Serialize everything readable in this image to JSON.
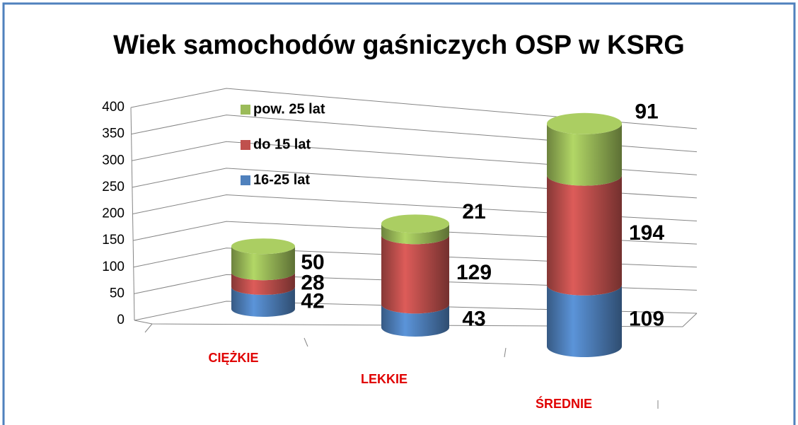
{
  "chart_data": {
    "type": "bar3d_stacked_cylinder",
    "title": "Wiek samochodów gaśniczych OSP w KSRG",
    "categories": [
      "CIĘŻKIE",
      "LEKKIE",
      "ŚREDNIE"
    ],
    "series": [
      {
        "name": "16-25 lat",
        "color": "#4f81bd",
        "values": [
          42,
          43,
          109
        ]
      },
      {
        "name": "do 15 lat",
        "color": "#c0504d",
        "values": [
          28,
          129,
          194
        ]
      },
      {
        "name": "pow. 25 lat",
        "color": "#9bbb59",
        "values": [
          50,
          21,
          91
        ]
      }
    ],
    "ylim": [
      0,
      400
    ],
    "yticks": [
      0,
      50,
      100,
      150,
      200,
      250,
      300,
      350,
      400
    ],
    "grid": true,
    "stacked": true,
    "legend": "top-left"
  }
}
